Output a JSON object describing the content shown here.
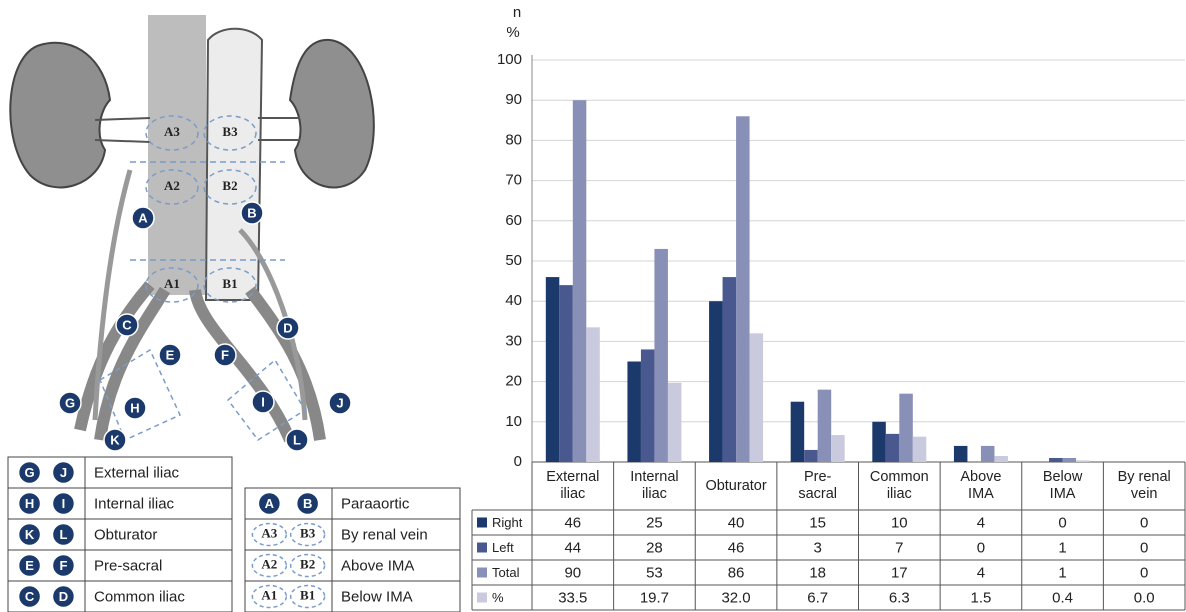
{
  "chart_data": {
    "type": "bar",
    "ylabel": "n",
    "ylabel_secondary": "%",
    "categories": [
      "External\niliac",
      "Internal\niliac",
      "Obturator",
      "Pre-\nsacral",
      "Common\niliac",
      "Above\nIMA",
      "Below\nIMA",
      "By renal\nvein"
    ],
    "series": [
      {
        "name": "Right",
        "color": "#1b3a6b",
        "values": [
          46,
          25,
          40,
          15,
          10,
          4,
          0,
          0
        ]
      },
      {
        "name": "Left",
        "color": "#4a5890",
        "values": [
          44,
          28,
          46,
          3,
          7,
          0,
          1,
          0
        ]
      },
      {
        "name": "Total",
        "color": "#8990b8",
        "values": [
          90,
          53,
          86,
          18,
          17,
          4,
          1,
          0
        ]
      },
      {
        "name": "%",
        "color": "#c9cade",
        "values": [
          33.5,
          19.7,
          32.0,
          6.7,
          6.3,
          1.5,
          0.4,
          0.0
        ],
        "value_labels": [
          "33.5",
          "19.7",
          "32.0",
          "6.7",
          "6.3",
          "1.5",
          "0.4",
          "0.0"
        ]
      }
    ],
    "ylim": [
      0,
      100
    ],
    "yticks": [
      0,
      10,
      20,
      30,
      40,
      50,
      60,
      70,
      80,
      90,
      100
    ],
    "grid": true
  },
  "diagram": {
    "zones": [
      "A3",
      "B3",
      "A2",
      "B2",
      "A1",
      "B1"
    ],
    "markers": [
      "A",
      "B",
      "C",
      "D",
      "E",
      "F",
      "G",
      "H",
      "I",
      "J",
      "K",
      "L"
    ]
  },
  "legend_left": {
    "rows": [
      [
        "G",
        "J",
        "External iliac"
      ],
      [
        "H",
        "I",
        "Internal iliac"
      ],
      [
        "K",
        "L",
        "Obturator"
      ],
      [
        "E",
        "F",
        "Pre-sacral"
      ],
      [
        "C",
        "D",
        "Common iliac"
      ]
    ]
  },
  "legend_right": {
    "rows": [
      [
        "A",
        "B",
        "Paraaortic"
      ],
      [
        "A3",
        "B3",
        "By renal vein"
      ],
      [
        "A2",
        "B2",
        "Above IMA"
      ],
      [
        "A1",
        "B1",
        "Below IMA"
      ]
    ]
  }
}
